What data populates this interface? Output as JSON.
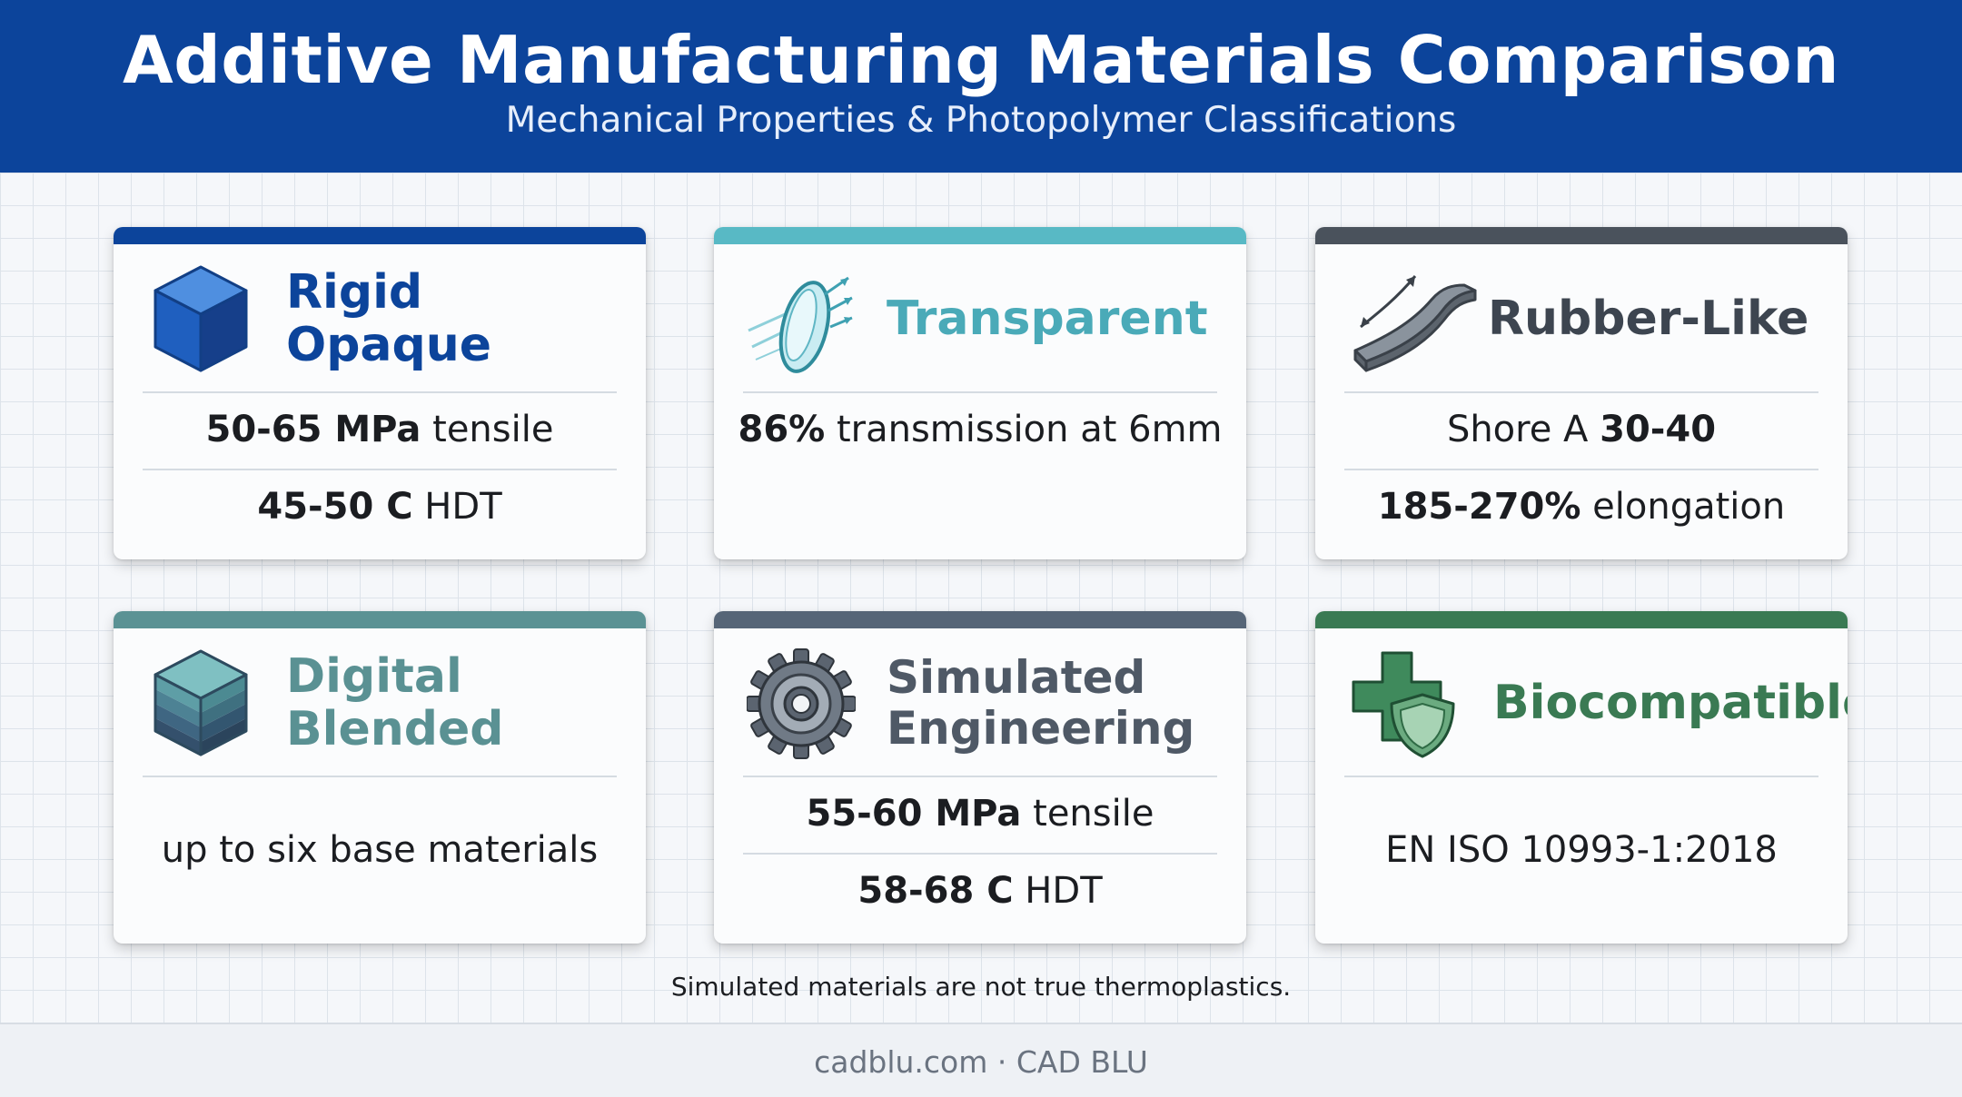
{
  "header": {
    "title": "Additive Manufacturing Materials Comparison",
    "subtitle": "Mechanical Properties & Photopolymer Classifications"
  },
  "cards": [
    {
      "title": "Rigid Opaque",
      "accent": "#0c449b",
      "title_color": "#0c449b",
      "icon": "cube-icon",
      "lines": [
        {
          "bold": "50-65 MPa",
          "text": " tensile"
        },
        {
          "bold": "45-50 C",
          "text": " HDT"
        }
      ]
    },
    {
      "title": "Transparent",
      "accent": "#58b9c5",
      "title_color": "#4aaab8",
      "icon": "lens-icon",
      "lines": [
        {
          "bold": "86%",
          "text": " transmission at 6mm"
        }
      ]
    },
    {
      "title": "Rubber-Like",
      "accent": "#4a525c",
      "title_color": "#3d4550",
      "icon": "flex-strip-icon",
      "lines": [
        {
          "text": "Shore A ",
          "bold": "30-40",
          "bold_last": true
        },
        {
          "bold": "185-270%",
          "text": " elongation"
        }
      ]
    },
    {
      "title": "Digital Blended",
      "accent": "#5b9294",
      "title_color": "#5a9193",
      "icon": "layered-cube-icon",
      "lines": [
        {
          "text": "up to six base materials"
        }
      ]
    },
    {
      "title": "Simulated Engineering",
      "title_line1": "Simulated",
      "title_line2": "Engineering",
      "accent": "#566577",
      "title_color": "#4f5966",
      "icon": "gear-icon",
      "lines": [
        {
          "bold": "55-60 MPa",
          "text": " tensile"
        },
        {
          "bold": "58-68 C",
          "text": " HDT"
        }
      ]
    },
    {
      "title": "Biocompatible",
      "accent": "#3a7a53",
      "title_color": "#3a7a53",
      "icon": "medical-shield-icon",
      "lines": [
        {
          "text": "EN ISO 10993-1:2018"
        }
      ]
    }
  ],
  "footnote": "Simulated materials are not true thermoplastics.",
  "footer": "cadblu.com · CAD BLU"
}
